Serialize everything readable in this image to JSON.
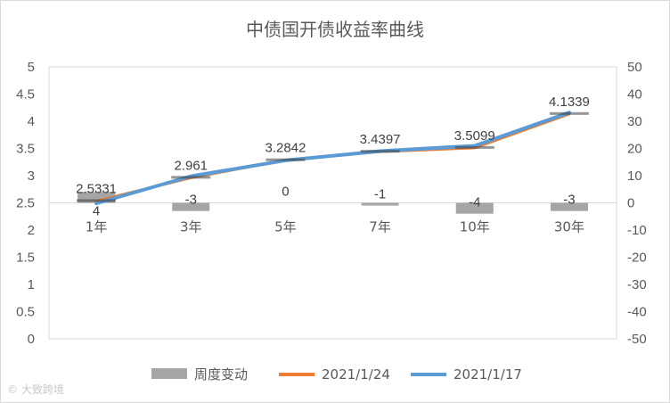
{
  "chart_data": {
    "type": "bar",
    "title": "中债国开债收益率曲线",
    "categories": [
      "1年",
      "3年",
      "5年",
      "7年",
      "10年",
      "30年"
    ],
    "ylim_left": [
      0,
      5
    ],
    "yticks_left": [
      "0",
      "0.5",
      "1",
      "1.5",
      "2",
      "2.5",
      "3",
      "3.5",
      "4",
      "4.5",
      "5"
    ],
    "ylim_right": [
      -50,
      50
    ],
    "yticks_right": [
      "-50",
      "-40",
      "-30",
      "-20",
      "-10",
      "0",
      "10",
      "20",
      "30",
      "40",
      "50"
    ],
    "bar_series": {
      "name": "周度变动",
      "axis": "right",
      "values": [
        4,
        -3,
        0,
        -1,
        -4,
        -3
      ],
      "labels": [
        "4",
        "-3",
        "0",
        "-1",
        "-4",
        "-3"
      ],
      "color": "#a5a5a5"
    },
    "line_series": [
      {
        "name": "2021/1/24",
        "axis": "left",
        "values": [
          2.5331,
          2.961,
          3.2842,
          3.4397,
          3.5099,
          4.1339
        ],
        "color": "#ed7d31"
      },
      {
        "name": "2021/1/17",
        "axis": "left",
        "values": [
          2.49,
          2.99,
          3.28,
          3.45,
          3.55,
          4.16
        ],
        "color": "#5b9bd5"
      }
    ],
    "line_labels": [
      "2.5331",
      "2.961",
      "3.2842",
      "3.4397",
      "3.5099",
      "4.1339"
    ],
    "grid": false,
    "legend_position": "bottom"
  },
  "watermark": "大致跨境"
}
